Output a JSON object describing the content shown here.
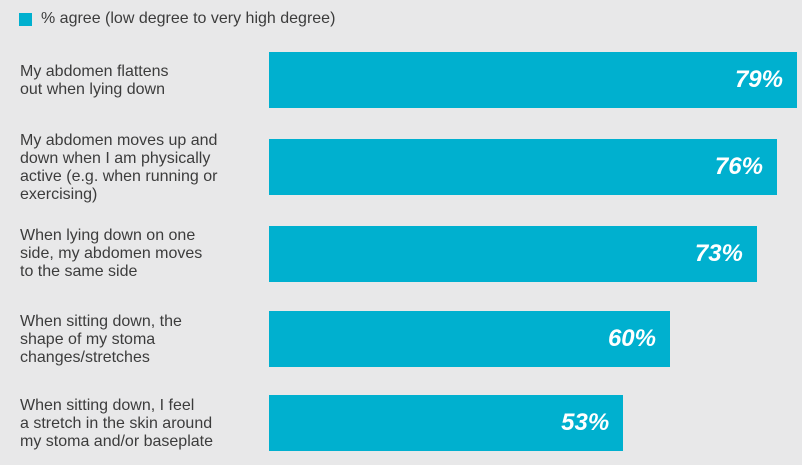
{
  "chart_data": {
    "type": "bar",
    "orientation": "horizontal",
    "legend": {
      "label": "% agree (low degree to very high degree)",
      "position": "top-left"
    },
    "categories": [
      "My abdomen flattens\nout when lying down",
      "My abdomen moves up and\ndown when I am physically\nactive (e.g. when running or\nexercising)",
      "When lying down on one\nside, my abdomen moves\nto the same side",
      "When sitting down, the\nshape of my stoma\nchanges/stretches",
      "When sitting down, I feel\na stretch in the skin around\nmy stoma and/or baseplate"
    ],
    "values": [
      79,
      76,
      73,
      60,
      53
    ],
    "value_labels": [
      "79%",
      "76%",
      "73%",
      "60%",
      "53%"
    ],
    "xlim": [
      0,
      79
    ],
    "grid": false,
    "colors": {
      "bar": "#00b0cf",
      "background": "#e8e8e9",
      "value_text": "#ffffff"
    }
  }
}
